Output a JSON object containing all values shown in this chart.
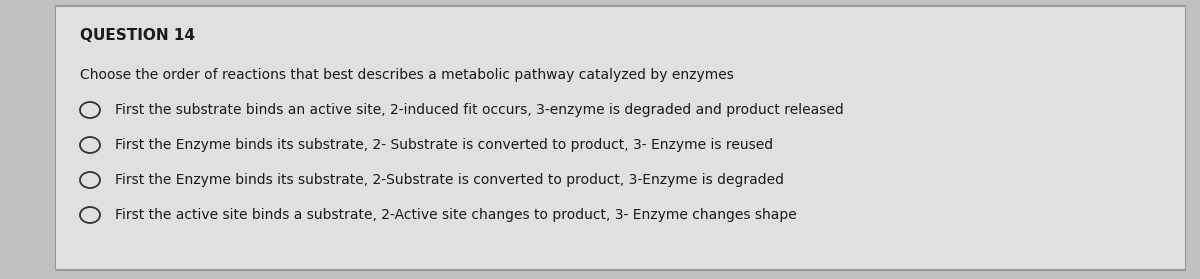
{
  "title": "QUESTION 14",
  "question": "Choose the order of reactions that best describes a metabolic pathway catalyzed by enzymes",
  "options": [
    "First the substrate binds an active site, 2-induced fit occurs, 3-enzyme is degraded and product released",
    "First the Enzyme binds its substrate, 2- Substrate is converted to product, 3- Enzyme is reused",
    "First the Enzyme binds its substrate, 2-Substrate is converted to product, 3-Enzyme is degraded",
    "First the active site binds a substrate, 2-Active site changes to product, 3- Enzyme changes shape"
  ],
  "bg_color": "#c0c0c0",
  "panel_color": "#e0e0e0",
  "border_color": "#999999",
  "text_color": "#1a1a1a",
  "title_fontsize": 11,
  "question_fontsize": 10,
  "option_fontsize": 10,
  "figwidth": 12.0,
  "figheight": 2.79,
  "dpi": 100
}
